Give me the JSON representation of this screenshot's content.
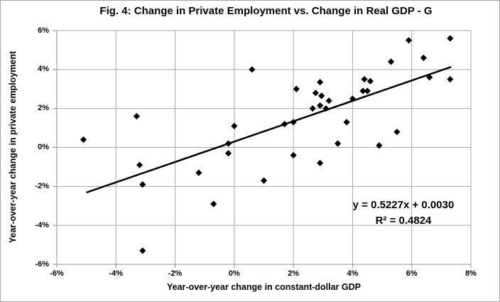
{
  "chart_data": {
    "type": "scatter",
    "title": "Fig. 4: Change in Private Employment vs. Change in Real GDP - G",
    "xlabel": "Year-over-year change in constant-dollar GDP",
    "ylabel": "Year-over-year change in private employment",
    "xlim": [
      -6,
      8
    ],
    "ylim": [
      -6,
      6
    ],
    "x_tick_values": [
      -6,
      -4,
      -2,
      0,
      2,
      4,
      6,
      8
    ],
    "x_tick_labels": [
      "-6%",
      "-4%",
      "-2%",
      "0%",
      "2%",
      "4%",
      "6%",
      "8%"
    ],
    "y_tick_values": [
      6,
      4,
      2,
      0,
      -2,
      -4,
      -6
    ],
    "y_tick_labels": [
      "6%",
      "4%",
      "2%",
      "0%",
      "-2%",
      "-4%",
      "-6%"
    ],
    "grid": true,
    "legend": "none",
    "marker": "diamond",
    "points_pct": [
      [
        -5.1,
        0.4
      ],
      [
        -3.3,
        1.6
      ],
      [
        -3.2,
        -0.9
      ],
      [
        -3.1,
        -1.9
      ],
      [
        -3.1,
        -5.3
      ],
      [
        -1.2,
        -1.3
      ],
      [
        -0.7,
        -2.9
      ],
      [
        -0.2,
        0.2
      ],
      [
        -0.2,
        -0.3
      ],
      [
        0.0,
        1.1
      ],
      [
        0.6,
        4.0
      ],
      [
        1.0,
        -1.7
      ],
      [
        1.7,
        1.2
      ],
      [
        2.0,
        1.3
      ],
      [
        2.0,
        -0.4
      ],
      [
        2.1,
        3.0
      ],
      [
        2.9,
        3.35
      ],
      [
        2.9,
        -0.8
      ],
      [
        2.75,
        2.8
      ],
      [
        2.95,
        2.65
      ],
      [
        3.2,
        2.4
      ],
      [
        2.65,
        2.0
      ],
      [
        2.9,
        2.15
      ],
      [
        3.1,
        2.0
      ],
      [
        3.5,
        0.2
      ],
      [
        3.8,
        1.3
      ],
      [
        4.0,
        2.5
      ],
      [
        4.4,
        3.5
      ],
      [
        4.6,
        3.4
      ],
      [
        4.35,
        2.9
      ],
      [
        4.5,
        2.9
      ],
      [
        4.9,
        0.1
      ],
      [
        5.3,
        4.4
      ],
      [
        5.5,
        0.8
      ],
      [
        5.9,
        5.5
      ],
      [
        6.4,
        4.6
      ],
      [
        6.6,
        3.6
      ],
      [
        7.3,
        5.6
      ],
      [
        7.3,
        3.5
      ]
    ],
    "trendline": {
      "slope": 0.5227,
      "intercept": 0.003,
      "x_start_pct": -5.0,
      "x_end_pct": 7.33
    },
    "annotation": {
      "line1": "y = 0.5227x + 0.0030",
      "line2": "R² = 0.4824"
    }
  },
  "colors": {
    "marker": "#000000",
    "trendline": "#000000",
    "gridline": "#a6a6a6",
    "axis": "#8c8c8c",
    "text": "#000000",
    "background": "#ffffff"
  }
}
